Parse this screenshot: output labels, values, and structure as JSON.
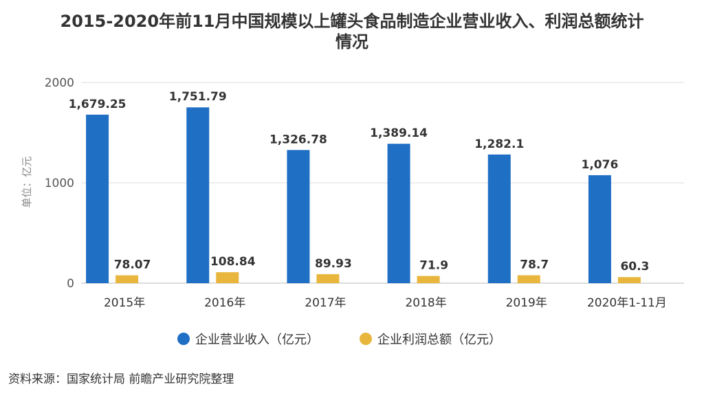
{
  "title": "2015-2020年前11月中国规模以上罐头食品制造企业营业收入、利润总额统计\n情况",
  "source": "资料来源：国家统计局 前瞻产业研究院整理",
  "chart_data": {
    "type": "bar",
    "categories": [
      "2015年",
      "2016年",
      "2017年",
      "2018年",
      "2019年",
      "2020年1-11月"
    ],
    "series": [
      {
        "name": "企业营业收入（亿元）",
        "values": [
          1679.25,
          1751.79,
          1326.78,
          1389.14,
          1282.1,
          1076
        ],
        "labels": [
          "1,679.25",
          "1,751.79",
          "1,326.78",
          "1,389.14",
          "1,282.1",
          "1,076"
        ],
        "color": "#1f6fc5"
      },
      {
        "name": "企业利润总额（亿元）",
        "values": [
          78.07,
          108.84,
          89.93,
          71.9,
          78.7,
          60.3
        ],
        "labels": [
          "78.07",
          "108.84",
          "89.93",
          "71.9",
          "78.7",
          "60.3"
        ],
        "color": "#e9b63d"
      }
    ],
    "ylabel": "单位：亿元",
    "ylim": [
      0,
      2000
    ],
    "yticks": [
      "0",
      "1000",
      "2000"
    ],
    "grid": true,
    "legend": "bottom"
  }
}
